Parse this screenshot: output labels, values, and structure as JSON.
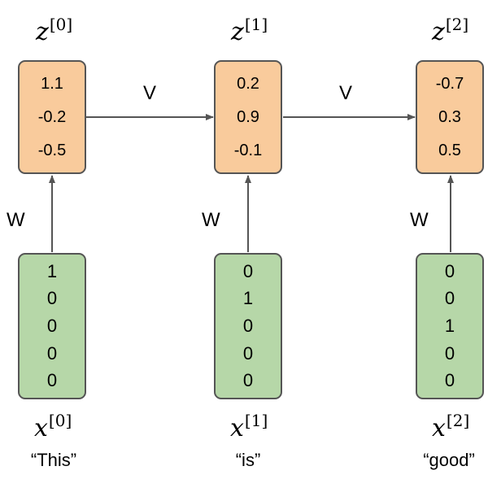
{
  "nodes": [
    {
      "hidden_label": {
        "symbol": "z",
        "index": "[0]"
      },
      "hidden_values": [
        "1.1",
        "-0.2",
        "-0.5"
      ],
      "input_values": [
        "1",
        "0",
        "0",
        "0",
        "0"
      ],
      "input_label": {
        "symbol": "x",
        "index": "[0]"
      },
      "word": "“This”"
    },
    {
      "hidden_label": {
        "symbol": "z",
        "index": "[1]"
      },
      "hidden_values": [
        "0.2",
        "0.9",
        "-0.1"
      ],
      "input_values": [
        "0",
        "1",
        "0",
        "0",
        "0"
      ],
      "input_label": {
        "symbol": "x",
        "index": "[1]"
      },
      "word": "“is”"
    },
    {
      "hidden_label": {
        "symbol": "z",
        "index": "[2]"
      },
      "hidden_values": [
        "-0.7",
        "0.3",
        "0.5"
      ],
      "input_values": [
        "0",
        "0",
        "1",
        "0",
        "0"
      ],
      "input_label": {
        "symbol": "x",
        "index": "[2]"
      },
      "word": "“good”"
    }
  ],
  "weights": {
    "recurrent": "V",
    "input": "W"
  },
  "colors": {
    "hidden_fill": "#f9cb9c",
    "input_fill": "#b6d7a8",
    "border": "#555555",
    "arrow": "#555555"
  }
}
